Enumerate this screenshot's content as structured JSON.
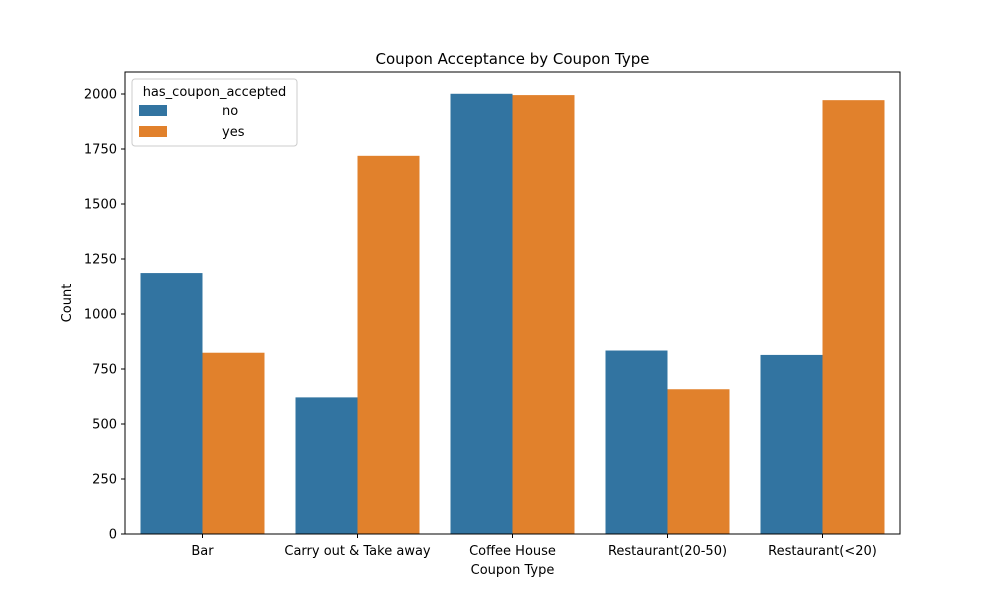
{
  "chart_data": {
    "type": "bar",
    "title": "Coupon Acceptance by Coupon Type",
    "xlabel": "Coupon Type",
    "ylabel": "Count",
    "categories": [
      "Bar",
      "Carry out & Take away",
      "Coffee House",
      "Restaurant(20-50)",
      "Restaurant(<20)"
    ],
    "series": [
      {
        "name": "no",
        "color": "#3274a1",
        "values": [
          1186,
          621,
          2001,
          834,
          814
        ]
      },
      {
        "name": "yes",
        "color": "#e1812c",
        "values": [
          824,
          1719,
          1995,
          658,
          1972
        ]
      }
    ],
    "ylim": [
      0,
      2100
    ],
    "yticks": [
      0,
      250,
      500,
      750,
      1000,
      1250,
      1500,
      1750,
      2000
    ],
    "legend": {
      "title": "has_coupon_accepted",
      "position": "top-left"
    },
    "grid": false
  }
}
